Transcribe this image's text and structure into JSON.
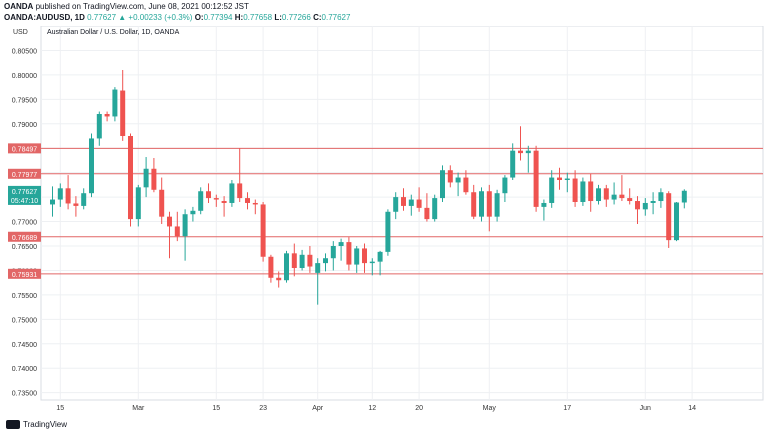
{
  "header": {
    "broker": "OANDA",
    "published": " published on TradingView.com, June 08, 2021 00:12:52 JST",
    "symbol": "OANDA:AUDUSD, 1D",
    "change": "0.77627 ▲ +0.00233 (+0.3%)",
    "o_label": "O:",
    "o_value": "0.77394",
    "h_label": "H:",
    "h_value": "0.77658",
    "l_label": "L:",
    "l_value": "0.77266",
    "c_label": "C:",
    "c_value": "0.77627"
  },
  "footer": {
    "brand": "TradingView"
  },
  "colors": {
    "up": "#26a69a",
    "down": "#ef5350",
    "hline": "#e26666",
    "grid": "#eef0f3",
    "axis_text": "#333333"
  },
  "chart_data": {
    "type": "candlestick",
    "title": "Australian Dollar / U.S. Dollar, 1D, OANDA",
    "currency": "USD",
    "ylim": [
      0.7335,
      0.81
    ],
    "y_ticks": [
      "0.80500",
      "0.80000",
      "0.79500",
      "0.79000",
      "0.78500",
      "0.78000",
      "0.77500",
      "0.77000",
      "0.76500",
      "0.76000",
      "0.75500",
      "0.75000",
      "0.74500",
      "0.74000",
      "0.73500"
    ],
    "x_ticks": [
      {
        "label": "15",
        "index": 1
      },
      {
        "label": "Mar",
        "index": 11
      },
      {
        "label": "15",
        "index": 21
      },
      {
        "label": "23",
        "index": 27
      },
      {
        "label": "Apr",
        "index": 34
      },
      {
        "label": "12",
        "index": 41
      },
      {
        "label": "20",
        "index": 47
      },
      {
        "label": "May",
        "index": 56
      },
      {
        "label": "17",
        "index": 66
      },
      {
        "label": "Jun",
        "index": 76
      },
      {
        "label": "14",
        "index": 82
      }
    ],
    "h_lines": [
      {
        "label": "0.78497",
        "value": 0.78497
      },
      {
        "label": "0.77977",
        "value": 0.77977
      },
      {
        "label": "0.76689",
        "value": 0.76689
      },
      {
        "label": "0.75931",
        "value": 0.75931
      }
    ],
    "last_price": {
      "label": "0.77627",
      "countdown": "05:47:10",
      "value": 0.77627
    },
    "candles": [
      {
        "o": 0.7735,
        "h": 0.7772,
        "l": 0.771,
        "c": 0.7745
      },
      {
        "o": 0.7745,
        "h": 0.7778,
        "l": 0.773,
        "c": 0.7768
      },
      {
        "o": 0.7768,
        "h": 0.7795,
        "l": 0.7725,
        "c": 0.7737
      },
      {
        "o": 0.7737,
        "h": 0.7752,
        "l": 0.771,
        "c": 0.7732
      },
      {
        "o": 0.7732,
        "h": 0.7768,
        "l": 0.7725,
        "c": 0.7758
      },
      {
        "o": 0.7758,
        "h": 0.788,
        "l": 0.775,
        "c": 0.787
      },
      {
        "o": 0.787,
        "h": 0.7925,
        "l": 0.7855,
        "c": 0.792
      },
      {
        "o": 0.792,
        "h": 0.7925,
        "l": 0.7905,
        "c": 0.7915
      },
      {
        "o": 0.7915,
        "h": 0.7975,
        "l": 0.7905,
        "c": 0.797
      },
      {
        "o": 0.7968,
        "h": 0.801,
        "l": 0.7865,
        "c": 0.7875
      },
      {
        "o": 0.7875,
        "h": 0.788,
        "l": 0.769,
        "c": 0.7705
      },
      {
        "o": 0.7705,
        "h": 0.7775,
        "l": 0.769,
        "c": 0.777
      },
      {
        "o": 0.777,
        "h": 0.7832,
        "l": 0.775,
        "c": 0.7808
      },
      {
        "o": 0.7808,
        "h": 0.783,
        "l": 0.776,
        "c": 0.7765
      },
      {
        "o": 0.7765,
        "h": 0.779,
        "l": 0.7695,
        "c": 0.771
      },
      {
        "o": 0.771,
        "h": 0.772,
        "l": 0.7625,
        "c": 0.769
      },
      {
        "o": 0.769,
        "h": 0.772,
        "l": 0.766,
        "c": 0.767
      },
      {
        "o": 0.767,
        "h": 0.7725,
        "l": 0.762,
        "c": 0.7715
      },
      {
        "o": 0.7715,
        "h": 0.773,
        "l": 0.77,
        "c": 0.7722
      },
      {
        "o": 0.7722,
        "h": 0.777,
        "l": 0.7715,
        "c": 0.7762
      },
      {
        "o": 0.7762,
        "h": 0.7778,
        "l": 0.7738,
        "c": 0.7748
      },
      {
        "o": 0.7748,
        "h": 0.7755,
        "l": 0.773,
        "c": 0.7745
      },
      {
        "o": 0.7742,
        "h": 0.7752,
        "l": 0.771,
        "c": 0.7738
      },
      {
        "o": 0.7738,
        "h": 0.7785,
        "l": 0.773,
        "c": 0.7778
      },
      {
        "o": 0.7778,
        "h": 0.785,
        "l": 0.774,
        "c": 0.7748
      },
      {
        "o": 0.7748,
        "h": 0.776,
        "l": 0.7725,
        "c": 0.7738
      },
      {
        "o": 0.7738,
        "h": 0.7745,
        "l": 0.7715,
        "c": 0.7735
      },
      {
        "o": 0.7735,
        "h": 0.774,
        "l": 0.7618,
        "c": 0.7628
      },
      {
        "o": 0.7628,
        "h": 0.7632,
        "l": 0.7575,
        "c": 0.7585
      },
      {
        "o": 0.7585,
        "h": 0.7598,
        "l": 0.7565,
        "c": 0.758
      },
      {
        "o": 0.758,
        "h": 0.764,
        "l": 0.7575,
        "c": 0.7635
      },
      {
        "o": 0.7635,
        "h": 0.7655,
        "l": 0.7588,
        "c": 0.7605
      },
      {
        "o": 0.7605,
        "h": 0.7642,
        "l": 0.76,
        "c": 0.7632
      },
      {
        "o": 0.7632,
        "h": 0.765,
        "l": 0.7595,
        "c": 0.7608
      },
      {
        "o": 0.7595,
        "h": 0.7625,
        "l": 0.753,
        "c": 0.7615
      },
      {
        "o": 0.7615,
        "h": 0.7635,
        "l": 0.7598,
        "c": 0.7625
      },
      {
        "o": 0.7625,
        "h": 0.766,
        "l": 0.76,
        "c": 0.765
      },
      {
        "o": 0.765,
        "h": 0.7665,
        "l": 0.762,
        "c": 0.7658
      },
      {
        "o": 0.7658,
        "h": 0.7668,
        "l": 0.76,
        "c": 0.7612
      },
      {
        "o": 0.7612,
        "h": 0.765,
        "l": 0.7595,
        "c": 0.7645
      },
      {
        "o": 0.7645,
        "h": 0.7655,
        "l": 0.7595,
        "c": 0.7615
      },
      {
        "o": 0.7615,
        "h": 0.7625,
        "l": 0.759,
        "c": 0.7618
      },
      {
        "o": 0.7618,
        "h": 0.764,
        "l": 0.759,
        "c": 0.7638
      },
      {
        "o": 0.7638,
        "h": 0.7725,
        "l": 0.763,
        "c": 0.772
      },
      {
        "o": 0.772,
        "h": 0.776,
        "l": 0.7705,
        "c": 0.775
      },
      {
        "o": 0.775,
        "h": 0.7768,
        "l": 0.7722,
        "c": 0.7732
      },
      {
        "o": 0.7732,
        "h": 0.7755,
        "l": 0.7712,
        "c": 0.7745
      },
      {
        "o": 0.7745,
        "h": 0.777,
        "l": 0.772,
        "c": 0.7728
      },
      {
        "o": 0.7728,
        "h": 0.7758,
        "l": 0.77,
        "c": 0.7705
      },
      {
        "o": 0.7705,
        "h": 0.7755,
        "l": 0.77,
        "c": 0.7748
      },
      {
        "o": 0.7748,
        "h": 0.7815,
        "l": 0.774,
        "c": 0.7805
      },
      {
        "o": 0.7805,
        "h": 0.7815,
        "l": 0.777,
        "c": 0.778
      },
      {
        "o": 0.778,
        "h": 0.78,
        "l": 0.7752,
        "c": 0.779
      },
      {
        "o": 0.779,
        "h": 0.7805,
        "l": 0.7755,
        "c": 0.776
      },
      {
        "o": 0.776,
        "h": 0.7775,
        "l": 0.7705,
        "c": 0.771
      },
      {
        "o": 0.771,
        "h": 0.777,
        "l": 0.77,
        "c": 0.7762
      },
      {
        "o": 0.7762,
        "h": 0.7775,
        "l": 0.768,
        "c": 0.771
      },
      {
        "o": 0.771,
        "h": 0.7765,
        "l": 0.77,
        "c": 0.7758
      },
      {
        "o": 0.7758,
        "h": 0.7795,
        "l": 0.774,
        "c": 0.779
      },
      {
        "o": 0.779,
        "h": 0.786,
        "l": 0.7785,
        "c": 0.7845
      },
      {
        "o": 0.7845,
        "h": 0.7895,
        "l": 0.7825,
        "c": 0.784
      },
      {
        "o": 0.784,
        "h": 0.7855,
        "l": 0.78,
        "c": 0.7845
      },
      {
        "o": 0.7845,
        "h": 0.7855,
        "l": 0.772,
        "c": 0.773
      },
      {
        "o": 0.773,
        "h": 0.7745,
        "l": 0.7702,
        "c": 0.7738
      },
      {
        "o": 0.7738,
        "h": 0.7805,
        "l": 0.7728,
        "c": 0.779
      },
      {
        "o": 0.779,
        "h": 0.781,
        "l": 0.7765,
        "c": 0.7785
      },
      {
        "o": 0.7785,
        "h": 0.78,
        "l": 0.776,
        "c": 0.7788
      },
      {
        "o": 0.7788,
        "h": 0.7805,
        "l": 0.773,
        "c": 0.774
      },
      {
        "o": 0.774,
        "h": 0.779,
        "l": 0.7732,
        "c": 0.7782
      },
      {
        "o": 0.7782,
        "h": 0.7798,
        "l": 0.772,
        "c": 0.7742
      },
      {
        "o": 0.7742,
        "h": 0.7775,
        "l": 0.7735,
        "c": 0.7768
      },
      {
        "o": 0.7768,
        "h": 0.7775,
        "l": 0.773,
        "c": 0.7745
      },
      {
        "o": 0.7745,
        "h": 0.778,
        "l": 0.7735,
        "c": 0.7755
      },
      {
        "o": 0.7755,
        "h": 0.7795,
        "l": 0.7742,
        "c": 0.7748
      },
      {
        "o": 0.7748,
        "h": 0.7768,
        "l": 0.7735,
        "c": 0.7742
      },
      {
        "o": 0.7742,
        "h": 0.7752,
        "l": 0.7695,
        "c": 0.7725
      },
      {
        "o": 0.7725,
        "h": 0.7748,
        "l": 0.7712,
        "c": 0.7738
      },
      {
        "o": 0.7738,
        "h": 0.776,
        "l": 0.7715,
        "c": 0.7742
      },
      {
        "o": 0.7742,
        "h": 0.7768,
        "l": 0.7728,
        "c": 0.776
      },
      {
        "o": 0.7758,
        "h": 0.7762,
        "l": 0.7646,
        "c": 0.7662
      },
      {
        "o": 0.7662,
        "h": 0.774,
        "l": 0.766,
        "c": 0.7739
      },
      {
        "o": 0.7739,
        "h": 0.7766,
        "l": 0.7727,
        "c": 0.7763
      }
    ]
  }
}
